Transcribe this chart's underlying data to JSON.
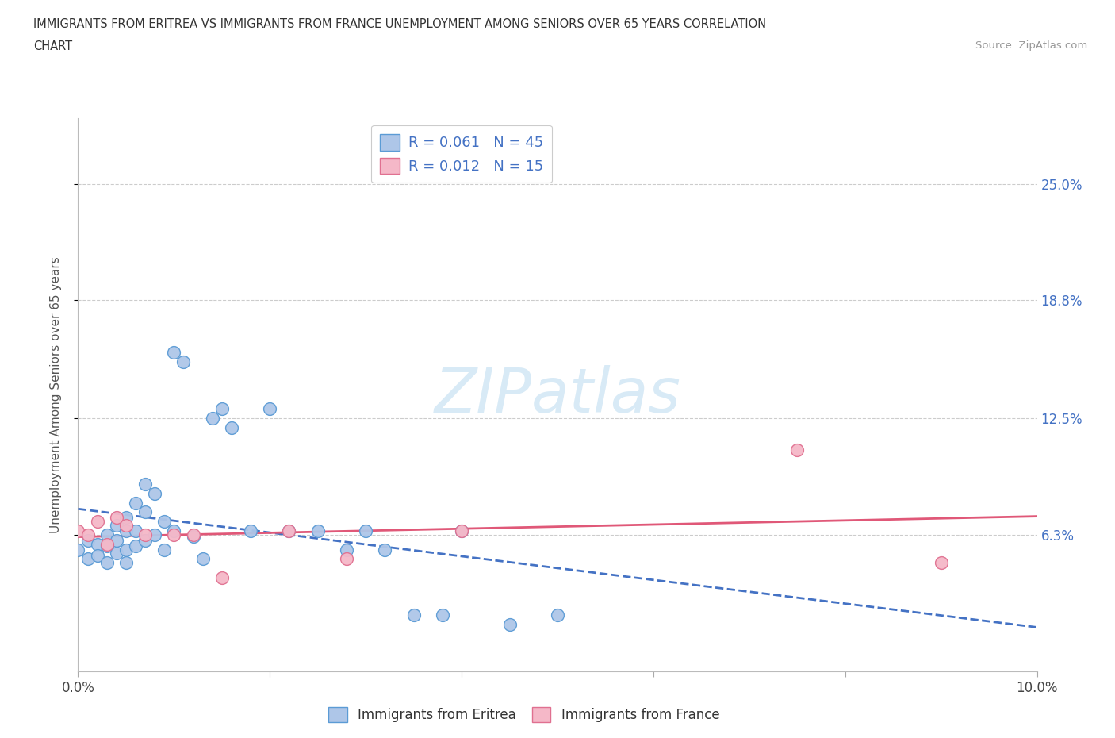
{
  "title_line1": "IMMIGRANTS FROM ERITREA VS IMMIGRANTS FROM FRANCE UNEMPLOYMENT AMONG SENIORS OVER 65 YEARS CORRELATION",
  "title_line2": "CHART",
  "source": "Source: ZipAtlas.com",
  "ylabel": "Unemployment Among Seniors over 65 years",
  "xlim": [
    0.0,
    0.1
  ],
  "ylim": [
    -0.01,
    0.285
  ],
  "xticks": [
    0.0,
    0.02,
    0.04,
    0.06,
    0.08,
    0.1
  ],
  "xticklabels": [
    "0.0%",
    "",
    "",
    "",
    "",
    "10.0%"
  ],
  "yticks": [
    0.063,
    0.125,
    0.188,
    0.25
  ],
  "yticklabels": [
    "6.3%",
    "12.5%",
    "18.8%",
    "25.0%"
  ],
  "legend_eritrea_label": "Immigrants from Eritrea",
  "legend_france_label": "Immigrants from France",
  "eritrea_color": "#aec6e8",
  "eritrea_edge_color": "#5b9bd5",
  "france_color": "#f5b8c8",
  "france_edge_color": "#e07090",
  "trend_eritrea_color": "#4472c4",
  "trend_france_color": "#e05878",
  "watermark_color": "#d8eaf6",
  "label_color": "#4472c4",
  "R_eritrea": 0.061,
  "N_eritrea": 45,
  "R_france": 0.012,
  "N_france": 15,
  "eritrea_x": [
    0.0,
    0.001,
    0.001,
    0.002,
    0.002,
    0.003,
    0.003,
    0.003,
    0.004,
    0.004,
    0.004,
    0.005,
    0.005,
    0.005,
    0.005,
    0.006,
    0.006,
    0.006,
    0.007,
    0.007,
    0.007,
    0.008,
    0.008,
    0.009,
    0.009,
    0.01,
    0.01,
    0.011,
    0.012,
    0.013,
    0.014,
    0.015,
    0.016,
    0.018,
    0.02,
    0.022,
    0.025,
    0.028,
    0.03,
    0.032,
    0.035,
    0.038,
    0.04,
    0.045,
    0.05
  ],
  "eritrea_y": [
    0.055,
    0.06,
    0.05,
    0.058,
    0.052,
    0.063,
    0.057,
    0.048,
    0.068,
    0.06,
    0.053,
    0.072,
    0.065,
    0.055,
    0.048,
    0.08,
    0.065,
    0.057,
    0.09,
    0.075,
    0.06,
    0.085,
    0.063,
    0.07,
    0.055,
    0.16,
    0.065,
    0.155,
    0.062,
    0.05,
    0.125,
    0.13,
    0.12,
    0.065,
    0.13,
    0.065,
    0.065,
    0.055,
    0.065,
    0.055,
    0.02,
    0.02,
    0.065,
    0.015,
    0.02
  ],
  "france_x": [
    0.0,
    0.001,
    0.002,
    0.003,
    0.004,
    0.005,
    0.007,
    0.01,
    0.012,
    0.015,
    0.022,
    0.028,
    0.04,
    0.075,
    0.09
  ],
  "france_y": [
    0.065,
    0.063,
    0.07,
    0.058,
    0.072,
    0.068,
    0.063,
    0.063,
    0.063,
    0.04,
    0.065,
    0.05,
    0.065,
    0.108,
    0.048
  ]
}
